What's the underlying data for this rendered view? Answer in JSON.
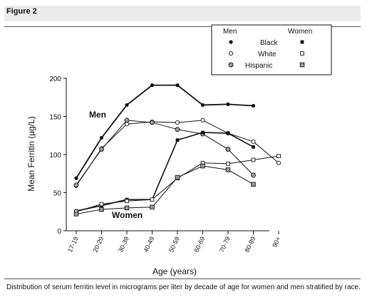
{
  "figure_label": "Figure 2",
  "caption": "Distribution of serum ferritin level in micrograms per liter by decade of age for women and men stratified by race.",
  "chart_data": {
    "type": "line",
    "xlabel": "Age (years)",
    "ylabel": "Mean Ferritin (µg/L)",
    "categories": [
      "17-19",
      "20-29",
      "30-39",
      "40-49",
      "50-59",
      "60-69",
      "70-79",
      "80-89",
      "90+"
    ],
    "ylim": [
      0,
      200
    ],
    "yticks": [
      0,
      50,
      100,
      150,
      200
    ],
    "grid": false,
    "legend": {
      "position": "top-right",
      "men_header": "Men",
      "women_header": "Women",
      "races": [
        "Black",
        "White",
        "Hispanic"
      ]
    },
    "annotations": [
      {
        "text": "Men",
        "at_category": "30-39",
        "at_value": 152
      },
      {
        "text": "Women",
        "at_category": "50-59",
        "at_value": 10
      }
    ],
    "series": [
      {
        "name": "Black",
        "group": "Men",
        "marker": "filled-circle",
        "values": [
          69,
          122,
          165,
          191,
          191,
          165,
          166,
          164,
          null
        ]
      },
      {
        "name": "White",
        "group": "Men",
        "marker": "open-circle",
        "values": [
          59,
          108,
          140,
          143,
          142,
          145,
          128,
          117,
          89
        ]
      },
      {
        "name": "Hispanic",
        "group": "Men",
        "marker": "hatched-circle",
        "values": [
          60,
          107,
          145,
          142,
          133,
          127,
          107,
          73,
          null
        ]
      },
      {
        "name": "Black",
        "group": "Women",
        "marker": "filled-square",
        "values": [
          26,
          33,
          41,
          41,
          119,
          129,
          128,
          110,
          null
        ]
      },
      {
        "name": "White",
        "group": "Women",
        "marker": "open-square",
        "values": [
          25,
          35,
          39,
          41,
          69,
          89,
          88,
          93,
          98
        ]
      },
      {
        "name": "Hispanic",
        "group": "Women",
        "marker": "hatched-square",
        "values": [
          22,
          28,
          30,
          31,
          70,
          85,
          80,
          61,
          null
        ]
      }
    ]
  }
}
